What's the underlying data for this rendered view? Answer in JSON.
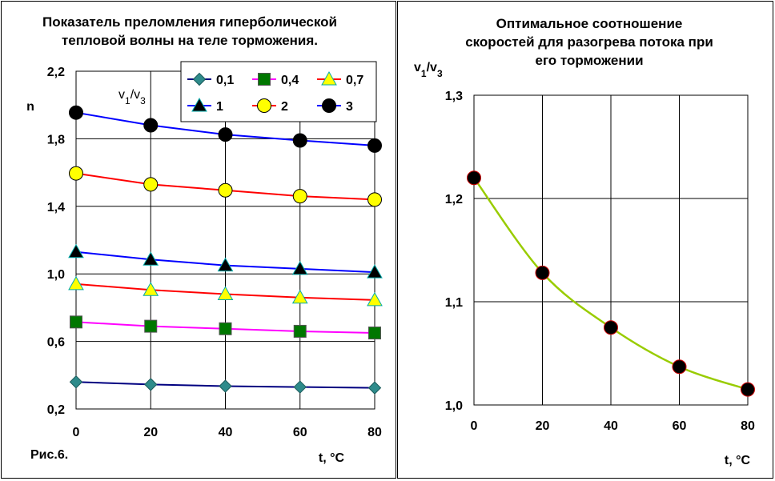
{
  "chart_data": [
    {
      "type": "line",
      "title_lines": [
        "Показатель преломления гиперболической",
        "тепловой волны на теле торможения."
      ],
      "ylabel": "n",
      "ylabel_note": "v1/v3",
      "xlabel": "t, °C",
      "caption": "Рис.6.",
      "x": [
        0,
        20,
        40,
        60,
        80
      ],
      "x_tick_labels": [
        "0",
        "20",
        "40",
        "60",
        "80"
      ],
      "ylim": [
        0.2,
        2.2
      ],
      "y_tick_values": [
        0.2,
        0.6,
        1.0,
        1.4,
        1.8,
        2.2
      ],
      "y_tick_labels": [
        "0,2",
        "0,6",
        "1,0",
        "1,4",
        "1,8",
        "2,2"
      ],
      "grid": true,
      "legend_position": "top-right",
      "series": [
        {
          "name": "0,1",
          "values": [
            0.36,
            0.345,
            0.335,
            0.33,
            0.325
          ],
          "line_color": "#000080",
          "marker": "diamond",
          "marker_color": "#2E8B8B"
        },
        {
          "name": "0,4",
          "values": [
            0.715,
            0.69,
            0.675,
            0.66,
            0.65
          ],
          "line_color": "#FF00FF",
          "marker": "square",
          "marker_color": "#007700"
        },
        {
          "name": "0,7",
          "values": [
            0.94,
            0.905,
            0.88,
            0.86,
            0.845
          ],
          "line_color": "#FF0000",
          "marker": "triangle",
          "marker_color": "#FFFF00"
        },
        {
          "name": "1",
          "values": [
            1.13,
            1.085,
            1.05,
            1.03,
            1.01
          ],
          "line_color": "#0000FF",
          "marker": "triangle",
          "marker_color": "#000000"
        },
        {
          "name": "2",
          "values": [
            1.595,
            1.53,
            1.495,
            1.46,
            1.44
          ],
          "line_color": "#FF0000",
          "marker": "circle",
          "marker_color": "#FFFF00"
        },
        {
          "name": "3",
          "values": [
            1.955,
            1.88,
            1.825,
            1.79,
            1.76
          ],
          "line_color": "#0000FF",
          "marker": "circle",
          "marker_color": "#000000"
        }
      ]
    },
    {
      "type": "line",
      "title_lines": [
        "Оптимальное соотношение",
        "скоростей для разогрева потока при",
        "его торможении"
      ],
      "ylabel": "v1/v3",
      "xlabel": "t, °C",
      "x": [
        0,
        20,
        40,
        60,
        80
      ],
      "x_tick_labels": [
        "0",
        "20",
        "40",
        "60",
        "80"
      ],
      "ylim": [
        1.0,
        1.3
      ],
      "y_tick_values": [
        1.0,
        1.1,
        1.2,
        1.3
      ],
      "y_tick_labels": [
        "1,0",
        "1,1",
        "1,2",
        "1,3"
      ],
      "grid": true,
      "series": [
        {
          "values": [
            1.22,
            1.128,
            1.075,
            1.037,
            1.015
          ],
          "line_color": "#99CC00",
          "marker": "circle",
          "marker_color": "#000000"
        }
      ]
    }
  ]
}
